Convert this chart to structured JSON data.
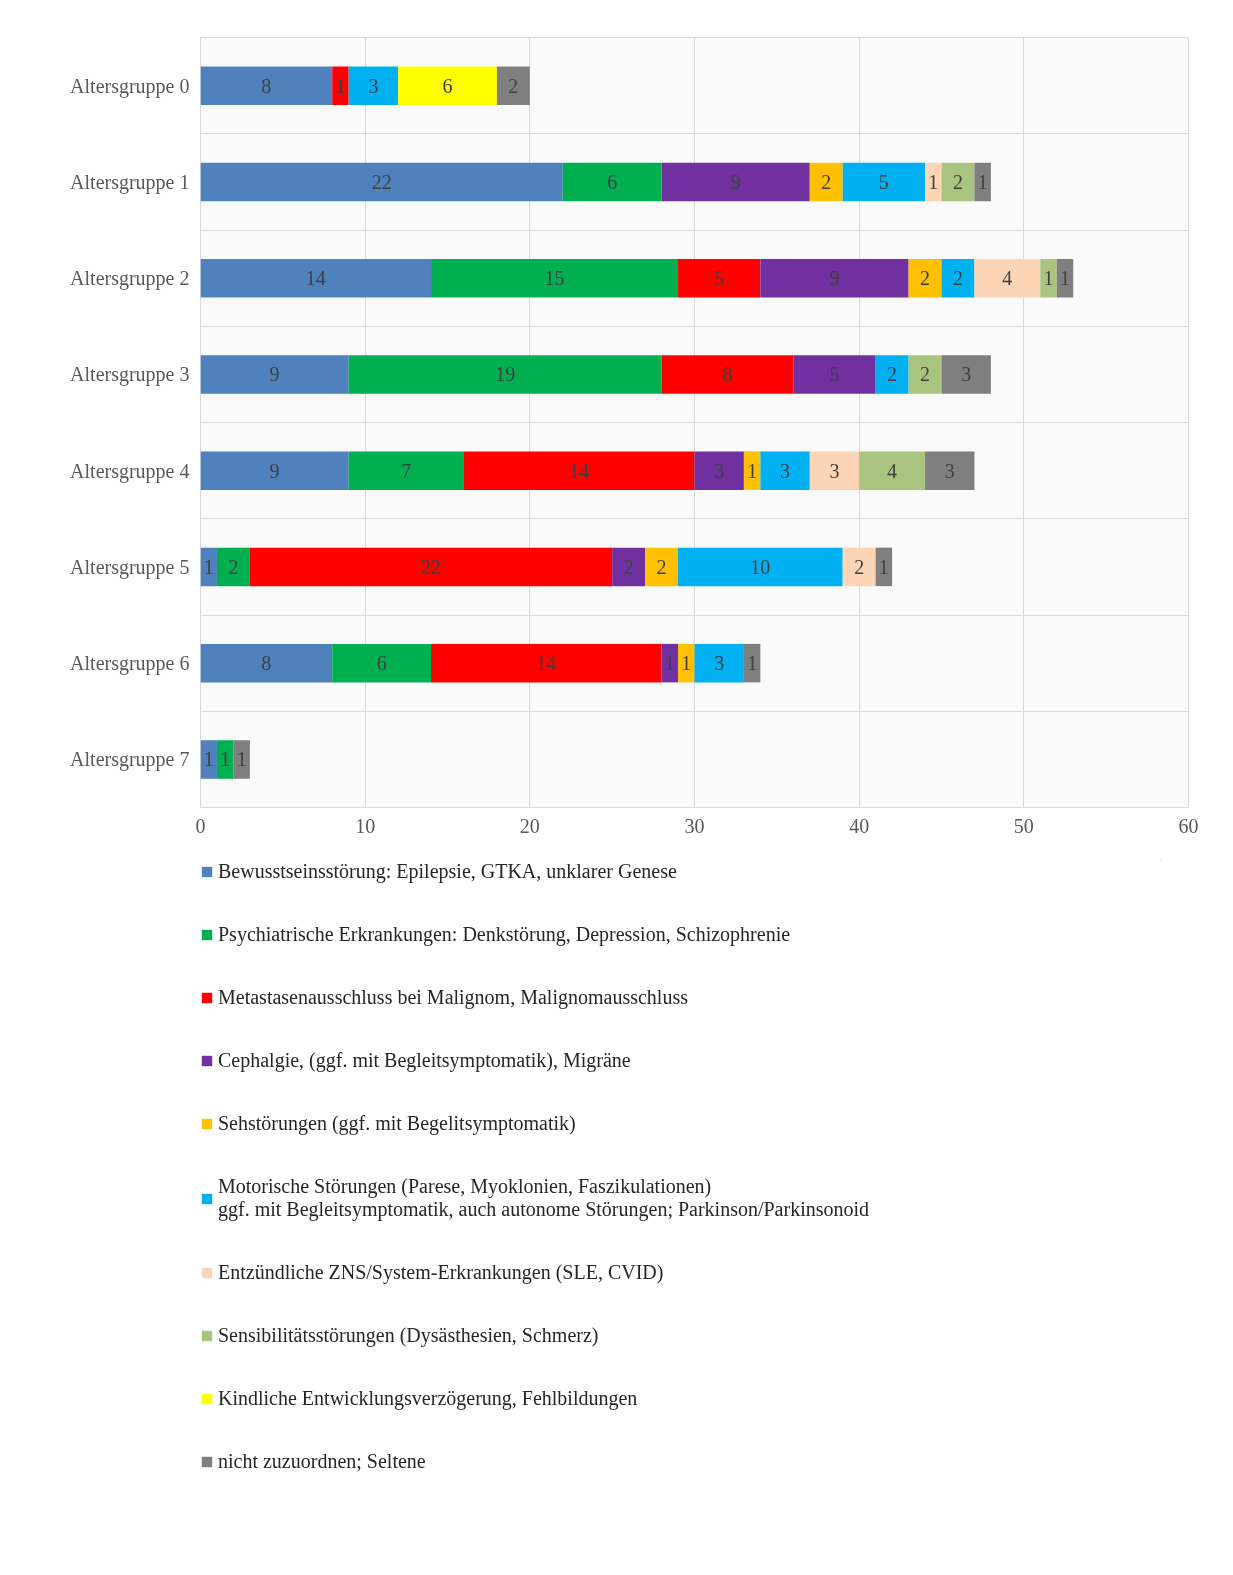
{
  "chart_data": {
    "type": "bar",
    "orientation": "horizontal",
    "stacked": true,
    "data_labels": true,
    "grid": true,
    "legend": "bottom",
    "categories": [
      "Altersgruppe 0",
      "Altersgruppe 1",
      "Altersgruppe 2",
      "Altersgruppe 3",
      "Altersgruppe 4",
      "Altersgruppe 5",
      "Altersgruppe 6",
      "Altersgruppe 7"
    ],
    "xlim": [
      0,
      60
    ],
    "xticks": [
      0,
      10,
      20,
      30,
      40,
      50,
      60
    ],
    "series": [
      {
        "name": "Bewusstseinsstörung: Epilepsie, GTKA, unklarer Genese",
        "color": "#4f81bd",
        "values": [
          8,
          22,
          14,
          9,
          9,
          1,
          8,
          1
        ]
      },
      {
        "name": "Psychiatrische Erkrankungen: Denkstörung, Depression, Schizophrenie",
        "color": "#00b050",
        "values": [
          null,
          6,
          15,
          19,
          7,
          2,
          6,
          1
        ]
      },
      {
        "name": "Metastasenausschluss bei Malignom, Malignomausschluss",
        "color": "#ff0000",
        "values": [
          1,
          null,
          5,
          8,
          14,
          22,
          14,
          null
        ]
      },
      {
        "name": "Cephalgie, (ggf. mit Begleitsymptomatik), Migräne",
        "color": "#7030a0",
        "values": [
          null,
          9,
          9,
          5,
          3,
          2,
          1,
          null
        ]
      },
      {
        "name": "Sehstörungen (ggf. mit Begelitsymptomatik)",
        "color": "#ffc000",
        "values": [
          null,
          2,
          2,
          null,
          1,
          2,
          1,
          null
        ]
      },
      {
        "name": "Motorische Störungen (Parese, Myoklonien, Faszikulationen)\nggf. mit Begleitsymptomatik, auch autonome Störungen; Parkinson/Parkinsonoid",
        "color": "#00b0f0",
        "values": [
          3,
          5,
          2,
          2,
          3,
          10,
          3,
          null
        ]
      },
      {
        "name": "Entzündliche ZNS/System-Erkrankungen (SLE, CVID)",
        "color": "#fbd5b5",
        "values": [
          null,
          1,
          4,
          null,
          3,
          2,
          null,
          null
        ]
      },
      {
        "name": "Sensibilitätsstörungen (Dysästhesien, Schmerz)",
        "color": "#a9c47f",
        "values": [
          null,
          2,
          1,
          2,
          4,
          null,
          null,
          null
        ]
      },
      {
        "name": "Kindliche Entwicklungsverzögerung, Fehlbildungen",
        "color": "#ffff00",
        "values": [
          6,
          null,
          null,
          null,
          null,
          null,
          null,
          null
        ]
      },
      {
        "name": "nicht zuzuordnen; Seltene",
        "color": "#7f7f7f",
        "values": [
          2,
          1,
          1,
          3,
          3,
          1,
          1,
          1
        ]
      }
    ]
  }
}
